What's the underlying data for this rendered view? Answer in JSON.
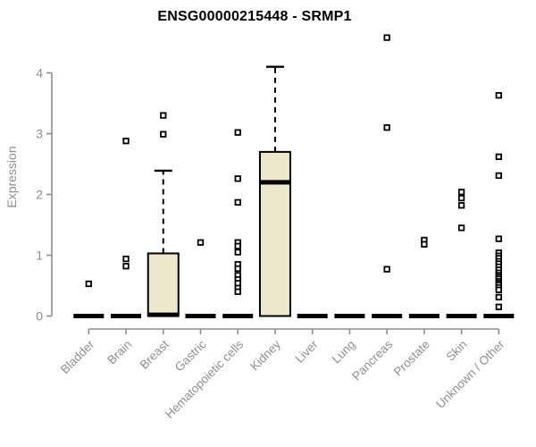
{
  "window": {
    "title": "ENSG00000215448 - SRMP1"
  },
  "colors": {
    "background": "#ffffff",
    "box_fill": "#ece7cd",
    "box_line": "#000000",
    "axis": "#8e8e8e",
    "tick_label": "#8e8e8e",
    "title": "#000000",
    "outlier_fill": "#ffffff"
  },
  "chart_data": {
    "type": "boxplot",
    "title": "ENSG00000215448 - SRMP1",
    "xlabel": "",
    "ylabel": "Expression",
    "ylim": [
      0,
      4.6
    ],
    "yticks": [
      0,
      1,
      2,
      3,
      4
    ],
    "grid": false,
    "legend": false,
    "categories": [
      "Bladder",
      "Brain",
      "Breast",
      "Gastric",
      "Hematopoietic cells",
      "Kidney",
      "Liver",
      "Lung",
      "Pancreas",
      "Prostate",
      "Skin",
      "Unknown / Other"
    ],
    "boxes": [
      {
        "category": "Bladder",
        "whisker_low": 0,
        "q1": 0,
        "median": 0,
        "q3": 0,
        "whisker_high": 0,
        "outliers": [
          0.53
        ]
      },
      {
        "category": "Brain",
        "whisker_low": 0,
        "q1": 0,
        "median": 0,
        "q3": 0,
        "whisker_high": 0,
        "outliers": [
          2.88,
          0.94,
          0.82
        ]
      },
      {
        "category": "Breast",
        "whisker_low": 0,
        "q1": 0,
        "median": 0.02,
        "q3": 1.03,
        "whisker_high": 2.39,
        "outliers": [
          3.3,
          2.99
        ]
      },
      {
        "category": "Gastric",
        "whisker_low": 0,
        "q1": 0,
        "median": 0,
        "q3": 0,
        "whisker_high": 0,
        "outliers": [
          1.21
        ]
      },
      {
        "category": "Hematopoietic cells",
        "whisker_low": 0,
        "q1": 0,
        "median": 0,
        "q3": 0,
        "whisker_high": 0,
        "outliers": [
          3.02,
          2.26,
          1.87,
          1.21,
          1.15,
          1.05,
          0.85,
          0.78,
          0.67,
          0.6,
          0.54,
          0.46,
          0.4
        ]
      },
      {
        "category": "Kidney",
        "whisker_low": 0,
        "q1": 0,
        "median": 2.2,
        "q3": 2.7,
        "whisker_high": 4.1,
        "outliers": []
      },
      {
        "category": "Liver",
        "whisker_low": 0,
        "q1": 0,
        "median": 0,
        "q3": 0,
        "whisker_high": 0,
        "outliers": []
      },
      {
        "category": "Lung",
        "whisker_low": 0,
        "q1": 0,
        "median": 0,
        "q3": 0,
        "whisker_high": 0,
        "outliers": []
      },
      {
        "category": "Pancreas",
        "whisker_low": 0,
        "q1": 0,
        "median": 0,
        "q3": 0,
        "whisker_high": 0,
        "outliers": [
          4.58,
          3.1,
          0.77
        ]
      },
      {
        "category": "Prostate",
        "whisker_low": 0,
        "q1": 0,
        "median": 0,
        "q3": 0,
        "whisker_high": 0,
        "outliers": [
          1.25,
          1.18
        ]
      },
      {
        "category": "Skin",
        "whisker_low": 0,
        "q1": 0,
        "median": 0,
        "q3": 0,
        "whisker_high": 0,
        "outliers": [
          2.04,
          1.94,
          1.82,
          1.45
        ]
      },
      {
        "category": "Unknown / Other",
        "whisker_low": 0,
        "q1": 0,
        "median": 0,
        "q3": 0,
        "whisker_high": 0,
        "outliers": [
          3.63,
          2.62,
          2.31,
          1.27,
          1.04,
          0.99,
          0.95,
          0.9,
          0.86,
          0.81,
          0.76,
          0.71,
          0.67,
          0.64,
          0.61,
          0.57,
          0.54,
          0.51,
          0.47,
          0.43,
          0.31,
          0.15
        ]
      }
    ]
  }
}
